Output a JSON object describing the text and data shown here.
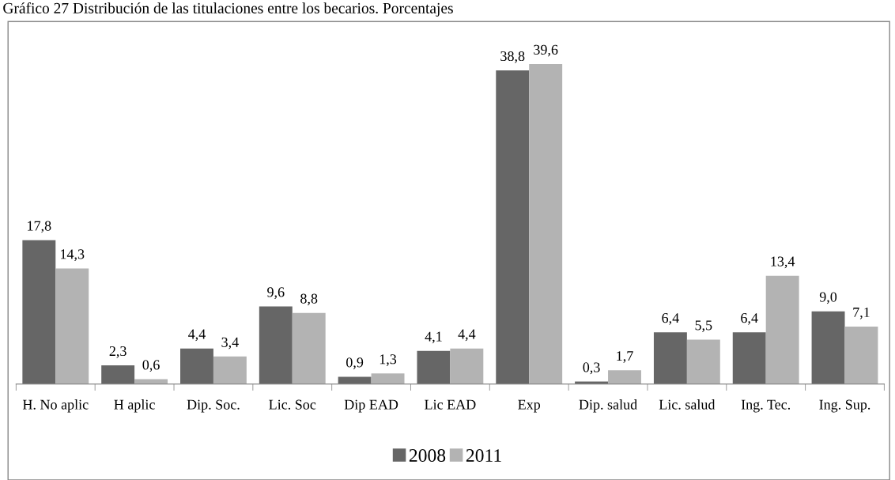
{
  "chart_data": {
    "type": "bar",
    "title": "Gráfico 27 Distribución de las titulaciones entre los becarios. Porcentajes",
    "categories": [
      "H. No aplic",
      "H aplic",
      "Dip. Soc.",
      "Lic. Soc",
      "Dip EAD",
      "Lic EAD",
      "Exp",
      "Dip. salud",
      "Lic. salud",
      "Ing. Tec.",
      "Ing. Sup."
    ],
    "series": [
      {
        "name": "2008",
        "color": "#666666",
        "values": [
          17.8,
          2.3,
          4.4,
          9.6,
          0.9,
          4.1,
          38.8,
          0.3,
          6.4,
          6.4,
          9.0
        ],
        "value_labels": [
          "17,8",
          "2,3",
          "4,4",
          "9,6",
          "0,9",
          "4,1",
          "38,8",
          "0,3",
          "6,4",
          "6,4",
          "9,0"
        ]
      },
      {
        "name": "2011",
        "color": "#b3b3b3",
        "values": [
          14.3,
          0.6,
          3.4,
          8.8,
          1.3,
          4.4,
          39.6,
          1.7,
          5.5,
          13.4,
          7.1
        ],
        "value_labels": [
          "14,3",
          "0,6",
          "3,4",
          "8,8",
          "1,3",
          "4,4",
          "39,6",
          "1,7",
          "5,5",
          "13,4",
          "7,1"
        ]
      }
    ],
    "legend": "bottom",
    "grid": false
  }
}
